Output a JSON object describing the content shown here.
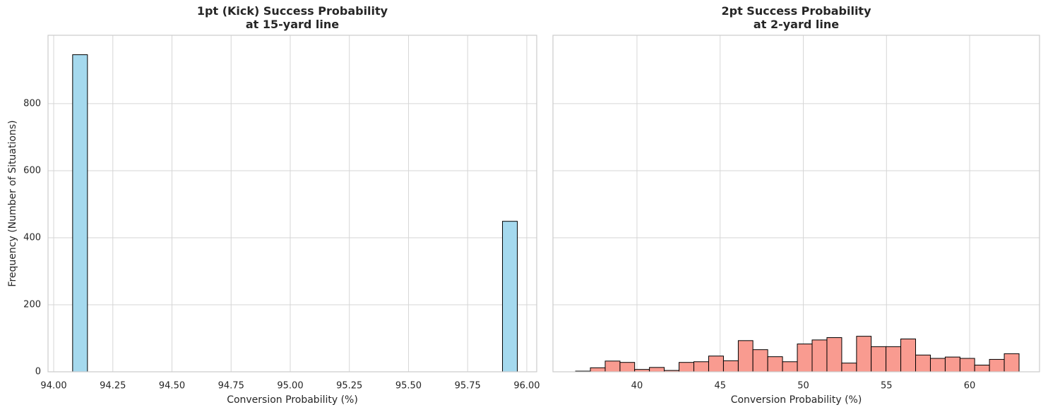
{
  "chart_data": [
    {
      "type": "histogram",
      "title": "1pt (Kick) Success Probability\nat 15-yard line",
      "x_label": "Conversion Probability (%)",
      "y_label": "Frequency (Number of Situations)",
      "color": "#a5d9ee",
      "bins": [
        94.08,
        94.1427,
        94.2053,
        94.268,
        94.3307,
        94.3933,
        94.456,
        94.5187,
        94.5813,
        94.644,
        94.7067,
        94.7693,
        94.832,
        94.8947,
        94.9573,
        95.02,
        95.0827,
        95.1453,
        95.208,
        95.2707,
        95.3333,
        95.396,
        95.4587,
        95.5213,
        95.584,
        95.6467,
        95.7093,
        95.772,
        95.8347,
        95.8973,
        95.96
      ],
      "values": [
        946,
        0,
        0,
        0,
        0,
        0,
        0,
        0,
        0,
        0,
        0,
        0,
        0,
        0,
        0,
        0,
        0,
        0,
        0,
        0,
        0,
        0,
        0,
        0,
        0,
        0,
        0,
        0,
        0,
        449
      ],
      "xlim": [
        93.976,
        96.042
      ],
      "xticks": [
        {
          "value": 94,
          "label": "94.00"
        },
        {
          "value": 94.25,
          "label": "94.25"
        },
        {
          "value": 94.5,
          "label": "94.50"
        },
        {
          "value": 94.75,
          "label": "94.75"
        },
        {
          "value": 95,
          "label": "95.00"
        },
        {
          "value": 95.25,
          "label": "95.25"
        },
        {
          "value": 95.5,
          "label": "95.50"
        },
        {
          "value": 95.75,
          "label": "95.75"
        },
        {
          "value": 96,
          "label": "96.00"
        }
      ],
      "ylim": [
        0,
        1004
      ],
      "yticks": [
        0,
        200,
        400,
        600,
        800
      ],
      "grid": true
    },
    {
      "type": "histogram",
      "title": "2pt Success Probability\nat 2-yard line",
      "x_label": "Conversion Probability (%)",
      "color": "#f99b90",
      "bins": [
        36.31,
        37.2,
        38.09,
        38.98,
        39.86,
        40.75,
        41.64,
        42.53,
        43.42,
        44.31,
        45.2,
        46.09,
        46.97,
        47.86,
        48.75,
        49.64,
        50.53,
        51.42,
        52.31,
        53.2,
        54.08,
        54.97,
        55.86,
        56.75,
        57.64,
        58.53,
        59.42,
        60.3,
        61.19,
        62.08,
        62.97
      ],
      "values": [
        2,
        12,
        32,
        28,
        7,
        13,
        4,
        28,
        30,
        47,
        33,
        93,
        66,
        45,
        30,
        83,
        95,
        102,
        26,
        106,
        75,
        75,
        98,
        50,
        40,
        44,
        40,
        20,
        37,
        54
      ],
      "xlim": [
        34.95,
        64.2
      ],
      "xticks": [
        40,
        45,
        50,
        55,
        60
      ],
      "ylim": [
        0,
        1004
      ],
      "yticks": [
        0,
        200,
        400,
        600,
        800
      ],
      "grid": true
    }
  ]
}
